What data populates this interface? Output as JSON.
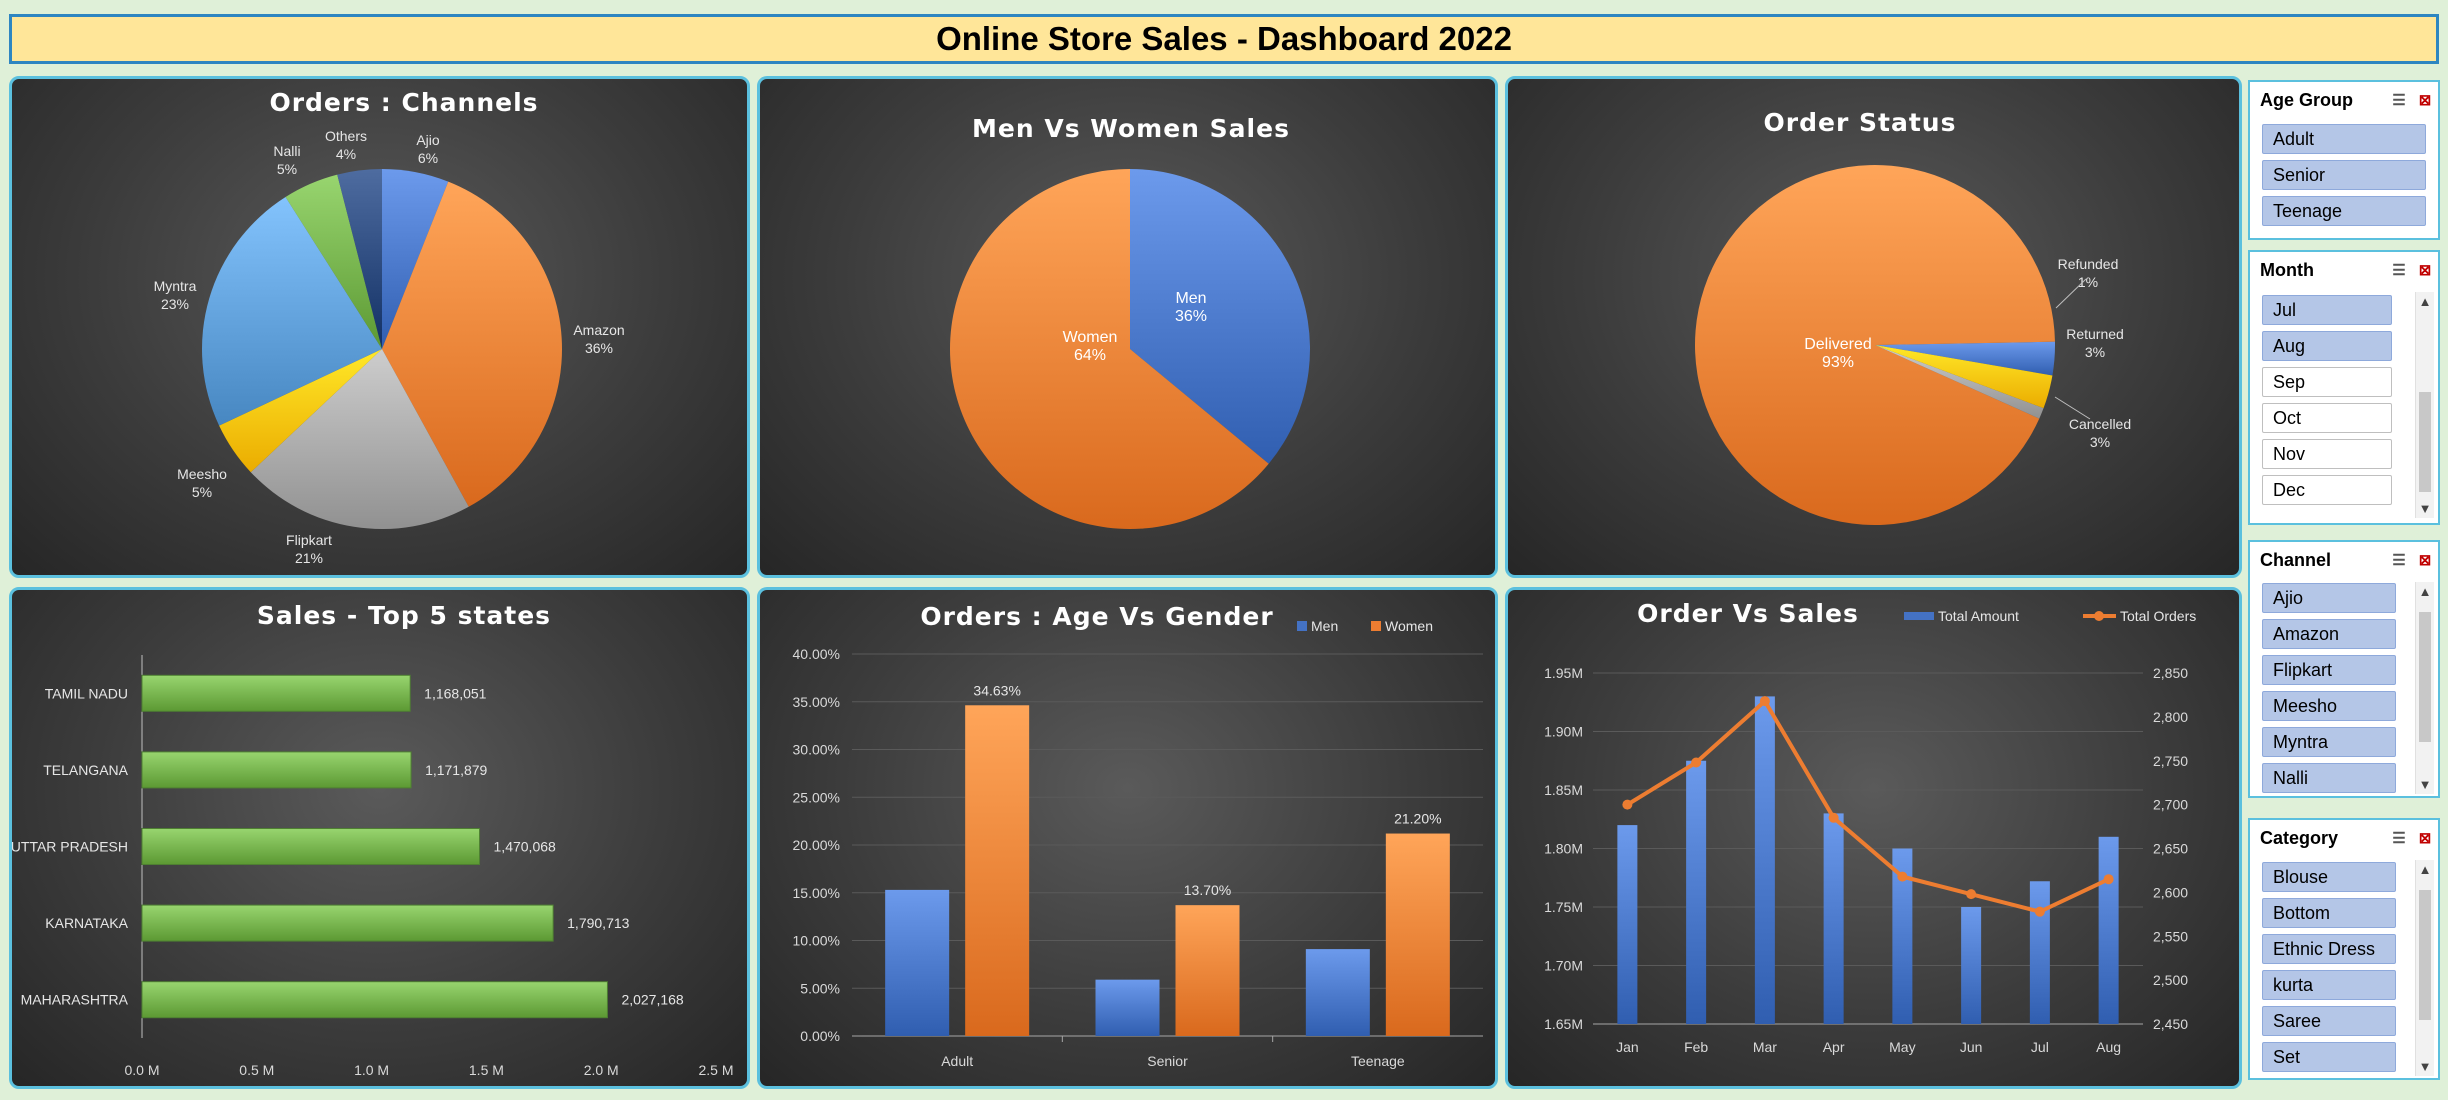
{
  "dashboard_title": "Online Store Sales  - Dashboard  2022",
  "chart_data": [
    {
      "type": "pie",
      "title": "Orders : Channels",
      "slices": [
        {
          "name": "Ajio",
          "value": 6,
          "color": "#4472c4"
        },
        {
          "name": "Amazon",
          "value": 36,
          "color": "#ed7d31"
        },
        {
          "name": "Flipkart",
          "value": 21,
          "color": "#a5a5a5"
        },
        {
          "name": "Meesho",
          "value": 5,
          "color": "#ffc000"
        },
        {
          "name": "Myntra",
          "value": 23,
          "color": "#5b9bd5"
        },
        {
          "name": "Nalli",
          "value": 5,
          "color": "#70ad47"
        },
        {
          "name": "Others",
          "value": 4,
          "color": "#264478"
        }
      ]
    },
    {
      "type": "pie",
      "title": "Men Vs Women Sales",
      "slices": [
        {
          "name": "Men",
          "value": 36,
          "color": "#4472c4"
        },
        {
          "name": "Women",
          "value": 64,
          "color": "#ed7d31"
        }
      ]
    },
    {
      "type": "pie",
      "title": "Order Status",
      "slices": [
        {
          "name": "Cancelled",
          "value": 3,
          "color": "#4472c4"
        },
        {
          "name": "Delivered",
          "value": 93,
          "color": "#ed7d31"
        },
        {
          "name": "Refunded",
          "value": 1,
          "color": "#a5a5a5"
        },
        {
          "name": "Returned",
          "value": 3,
          "color": "#ffc000"
        }
      ]
    },
    {
      "type": "bar",
      "orientation": "horizontal",
      "title": "Sales - Top 5 states",
      "categories": [
        "TAMIL NADU",
        "TELANGANA",
        "UTTAR PRADESH",
        "KARNATAKA",
        "MAHARASHTRA"
      ],
      "values": [
        1168051,
        1171879,
        1470068,
        1790713,
        2027168
      ],
      "value_labels": [
        "1,168,051",
        "1,171,879",
        "1,470,068",
        "1,790,713",
        "2,027,168"
      ],
      "xlim": [
        0,
        2500000
      ],
      "x_ticks": [
        "0.0 M",
        "0.5 M",
        "1.0 M",
        "1.5 M",
        "2.0 M",
        "2.5 M"
      ],
      "color": "#70ad47"
    },
    {
      "type": "bar",
      "title": "Orders : Age Vs Gender",
      "categories": [
        "Adult",
        "Senior",
        "Teenage"
      ],
      "series": [
        {
          "name": "Men",
          "values": [
            15.3,
            5.9,
            9.1
          ],
          "color": "#4472c4"
        },
        {
          "name": "Women",
          "values": [
            34.63,
            13.7,
            21.2
          ],
          "color": "#ed7d31",
          "labels": [
            "34.63%",
            "13.70%",
            "21.20%"
          ]
        }
      ],
      "ylim": [
        0,
        40
      ],
      "y_ticks": [
        "0.00%",
        "5.00%",
        "10.00%",
        "15.00%",
        "20.00%",
        "25.00%",
        "30.00%",
        "35.00%",
        "40.00%"
      ],
      "legend": "top-right"
    },
    {
      "type": "bar+line",
      "title": "Order Vs Sales",
      "categories": [
        "Jan",
        "Feb",
        "Mar",
        "Apr",
        "May",
        "Jun",
        "Jul",
        "Aug"
      ],
      "series": [
        {
          "name": "Total Amount",
          "values": [
            1.82,
            1.875,
            1.93,
            1.83,
            1.8,
            1.75,
            1.772,
            1.81
          ],
          "color": "#4472c4",
          "axis": "left"
        },
        {
          "name": "Total Orders",
          "values": [
            2700,
            2748,
            2818,
            2685,
            2618,
            2598,
            2578,
            2615
          ],
          "color": "#ed7d31",
          "axis": "right"
        }
      ],
      "ylim": [
        1.65,
        1.95
      ],
      "y_ticks": [
        "1.65M",
        "1.70M",
        "1.75M",
        "1.80M",
        "1.85M",
        "1.90M",
        "1.95M"
      ],
      "y2lim": [
        2450,
        2850
      ],
      "y2_ticks": [
        "2,450",
        "2,500",
        "2,550",
        "2,600",
        "2,650",
        "2,700",
        "2,750",
        "2,800",
        "2,850"
      ],
      "legend": "top"
    }
  ],
  "slicers": {
    "age_group": {
      "title": "Age Group",
      "items": [
        {
          "label": "Adult",
          "selected": true
        },
        {
          "label": "Senior",
          "selected": true
        },
        {
          "label": "Teenage",
          "selected": true
        }
      ]
    },
    "month": {
      "title": "Month",
      "items": [
        {
          "label": "Jul",
          "selected": true
        },
        {
          "label": "Aug",
          "selected": true
        },
        {
          "label": "Sep",
          "selected": false
        },
        {
          "label": "Oct",
          "selected": false
        },
        {
          "label": "Nov",
          "selected": false
        },
        {
          "label": "Dec",
          "selected": false
        }
      ]
    },
    "channel": {
      "title": "Channel",
      "items": [
        {
          "label": "Ajio",
          "selected": true
        },
        {
          "label": "Amazon",
          "selected": true
        },
        {
          "label": "Flipkart",
          "selected": true
        },
        {
          "label": "Meesho",
          "selected": true
        },
        {
          "label": "Myntra",
          "selected": true
        },
        {
          "label": "Nalli",
          "selected": true
        }
      ]
    },
    "category": {
      "title": "Category",
      "items": [
        {
          "label": "Blouse",
          "selected": true
        },
        {
          "label": "Bottom",
          "selected": true
        },
        {
          "label": "Ethnic Dress",
          "selected": true
        },
        {
          "label": "kurta",
          "selected": true
        },
        {
          "label": "Saree",
          "selected": true
        },
        {
          "label": "Set",
          "selected": true
        }
      ]
    }
  }
}
